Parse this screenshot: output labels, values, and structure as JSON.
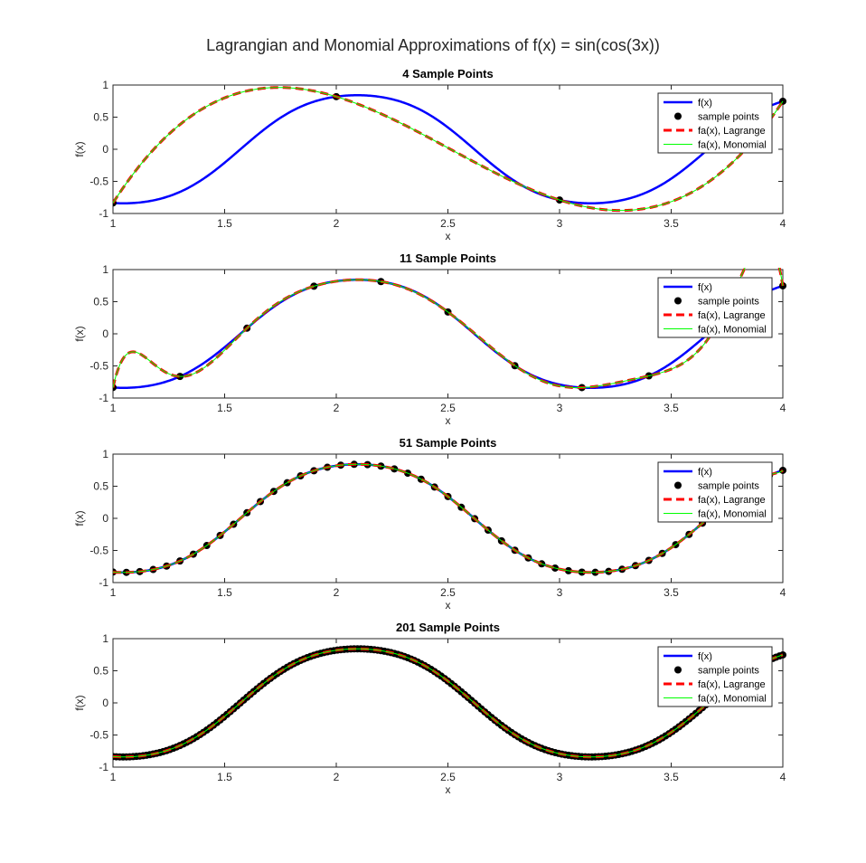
{
  "figure": {
    "title": "Lagrangian and Monomial Approximations of f(x) = sin(cos(3x))"
  },
  "legend_entries": [
    "f(x)",
    "sample points",
    "fa(x), Lagrange",
    "fa(x), Monomial"
  ],
  "colors": {
    "true_function": "#0000ff",
    "sample_points": "#000000",
    "lagrange": "#ff0000",
    "monomial": "#00ff00",
    "axes": "#262626"
  },
  "chart_data": [
    {
      "type": "line",
      "title": "4 Sample Points",
      "xlabel": "x",
      "ylabel": "f(x)",
      "xlim": [
        1,
        4
      ],
      "ylim": [
        -1,
        1
      ],
      "xticks": [
        "1",
        "1.5",
        "2",
        "2.5",
        "3",
        "3.5",
        "4"
      ],
      "yticks": [
        "-1",
        "-0.5",
        "0",
        "0.5",
        "1"
      ],
      "legend_position": "top-right",
      "n_samples": 4,
      "series": [
        {
          "name": "f(x)",
          "function": "sin(cos(3x))"
        },
        {
          "name": "sample points",
          "x": [
            1,
            2,
            3,
            4
          ]
        },
        {
          "name": "fa(x), Lagrange",
          "interpolates": "sample points"
        },
        {
          "name": "fa(x), Monomial",
          "interpolates": "sample points"
        }
      ]
    },
    {
      "type": "line",
      "title": "11 Sample Points",
      "xlabel": "x",
      "ylabel": "f(x)",
      "xlim": [
        1,
        4
      ],
      "ylim": [
        -1,
        1
      ],
      "xticks": [
        "1",
        "1.5",
        "2",
        "2.5",
        "3",
        "3.5",
        "4"
      ],
      "yticks": [
        "-1",
        "-0.5",
        "0",
        "0.5",
        "1"
      ],
      "legend_position": "top-right",
      "n_samples": 11,
      "series": [
        {
          "name": "f(x)",
          "function": "sin(cos(3x))"
        },
        {
          "name": "sample points",
          "x_range": [
            1,
            4
          ]
        },
        {
          "name": "fa(x), Lagrange",
          "interpolates": "sample points"
        },
        {
          "name": "fa(x), Monomial",
          "interpolates": "sample points"
        }
      ]
    },
    {
      "type": "line",
      "title": "51 Sample Points",
      "xlabel": "x",
      "ylabel": "f(x)",
      "xlim": [
        1,
        4
      ],
      "ylim": [
        -1,
        1
      ],
      "xticks": [
        "1",
        "1.5",
        "2",
        "2.5",
        "3",
        "3.5",
        "4"
      ],
      "yticks": [
        "-1",
        "-0.5",
        "0",
        "0.5",
        "1"
      ],
      "legend_position": "top-right",
      "n_samples": 51,
      "series": [
        {
          "name": "f(x)",
          "function": "sin(cos(3x))"
        },
        {
          "name": "sample points",
          "x_range": [
            1,
            4
          ]
        },
        {
          "name": "fa(x), Lagrange",
          "interpolates": "sample points"
        },
        {
          "name": "fa(x), Monomial",
          "interpolates": "sample points"
        }
      ]
    },
    {
      "type": "line",
      "title": "201 Sample Points",
      "xlabel": "x",
      "ylabel": "f(x)",
      "xlim": [
        1,
        4
      ],
      "ylim": [
        -1,
        1
      ],
      "xticks": [
        "1",
        "1.5",
        "2",
        "2.5",
        "3",
        "3.5",
        "4"
      ],
      "yticks": [
        "-1",
        "-0.5",
        "0",
        "0.5",
        "1"
      ],
      "legend_position": "top-right",
      "n_samples": 201,
      "series": [
        {
          "name": "f(x)",
          "function": "sin(cos(3x))"
        },
        {
          "name": "sample points",
          "x_range": [
            1,
            4
          ]
        },
        {
          "name": "fa(x), Lagrange",
          "interpolates": "sample points"
        },
        {
          "name": "fa(x), Monomial",
          "interpolates": "sample points"
        }
      ]
    }
  ]
}
